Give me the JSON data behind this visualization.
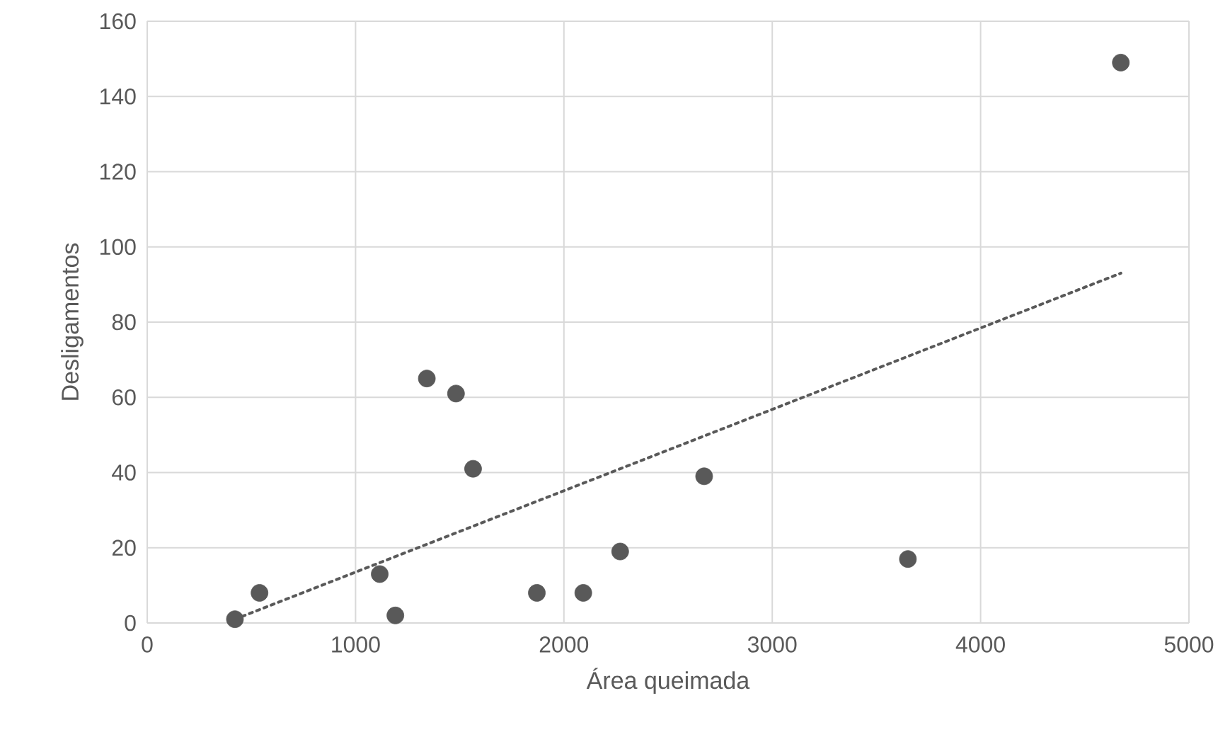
{
  "chart_data": {
    "type": "scatter",
    "xlabel": "Área queimada",
    "ylabel": "Desligamentos",
    "xlim": [
      0,
      5000
    ],
    "xticks": [
      0,
      1000,
      2000,
      3000,
      4000,
      5000
    ],
    "ylim": [
      0,
      160
    ],
    "yticks": [
      0,
      20,
      40,
      60,
      80,
      100,
      120,
      140,
      160
    ],
    "grid": true,
    "marker": "circle",
    "series": [
      {
        "type": "scatter",
        "color": "#595959",
        "x": [
          421,
          539,
          1116,
          1191,
          1342,
          1482,
          1564,
          1870,
          2093,
          2270,
          2673,
          3651,
          4673
        ],
        "values": [
          1,
          8,
          13,
          2,
          65,
          61,
          41,
          8,
          8,
          19,
          39,
          17,
          149
        ]
      },
      {
        "type": "line",
        "color": "#595959",
        "line_style": "dotted",
        "marker": "none",
        "x": [
          421,
          4673
        ],
        "values": [
          1,
          93
        ]
      }
    ]
  }
}
